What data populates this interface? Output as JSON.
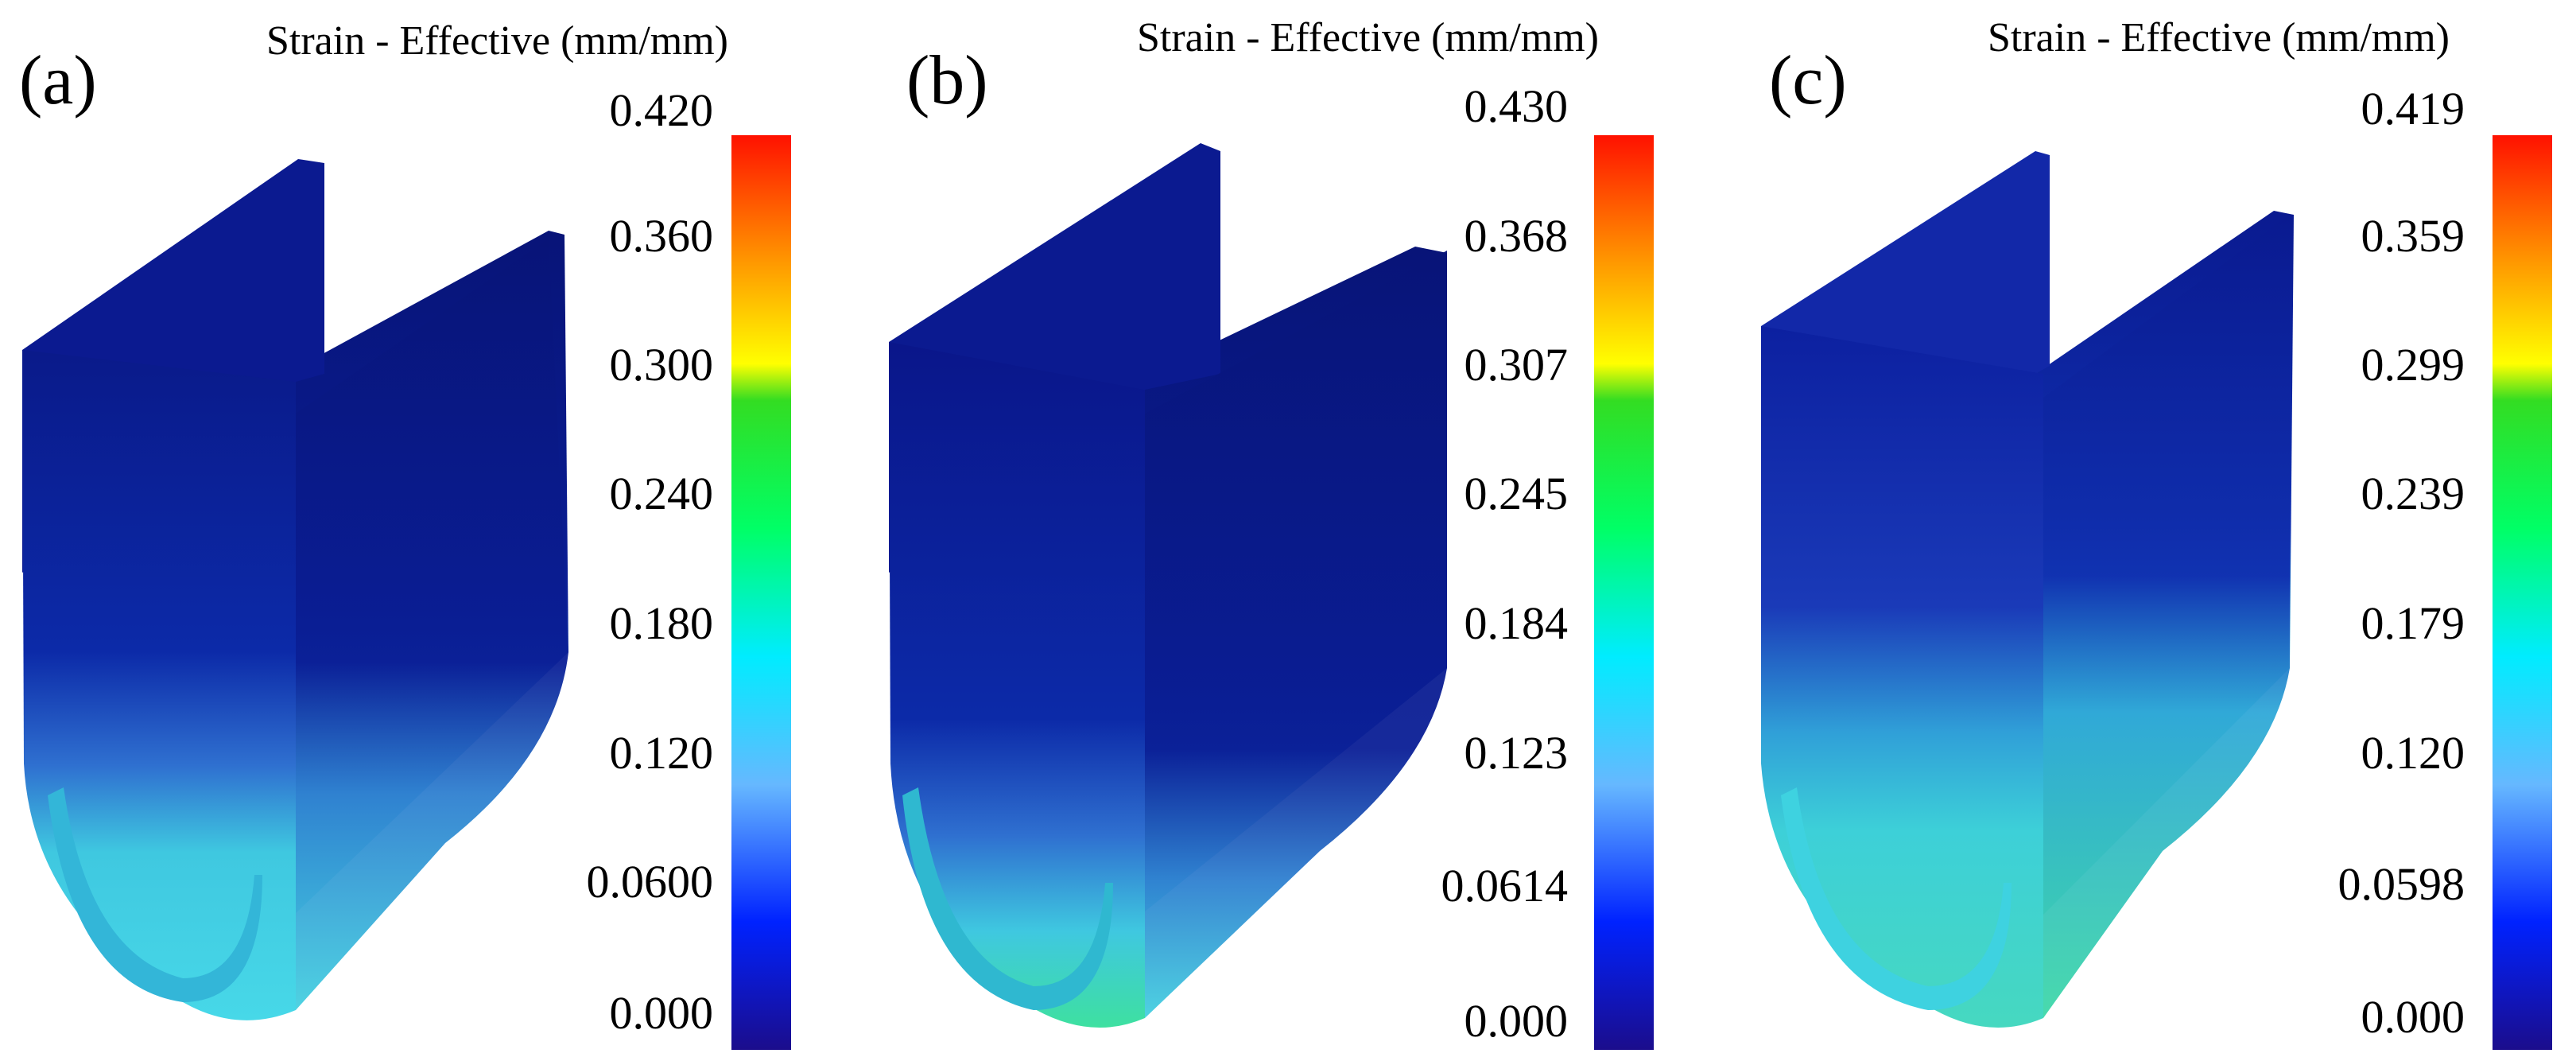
{
  "panels": [
    {
      "label": "(a)",
      "legend_title": "Strain - Effective (mm/mm)",
      "ticks": [
        "0.420",
        "0.360",
        "0.300",
        "0.240",
        "0.180",
        "0.120",
        "0.0600",
        "0.000"
      ]
    },
    {
      "label": "(b)",
      "legend_title": "Strain - Effective (mm/mm)",
      "ticks": [
        "0.430",
        "0.368",
        "0.307",
        "0.245",
        "0.184",
        "0.123",
        "0.0614",
        "0.000"
      ]
    },
    {
      "label": "(c)",
      "legend_title": "Strain - Effective (mm/mm)",
      "ticks": [
        "0.419",
        "0.359",
        "0.299",
        "0.239",
        "0.179",
        "0.120",
        "0.0598",
        "0.000"
      ]
    }
  ],
  "colormap": [
    "#1b0d8c",
    "#0033ff",
    "#4aa8ff",
    "#00e6ff",
    "#00ff88",
    "#22dd22",
    "#ffff00",
    "#ff9900",
    "#ff1100"
  ]
}
